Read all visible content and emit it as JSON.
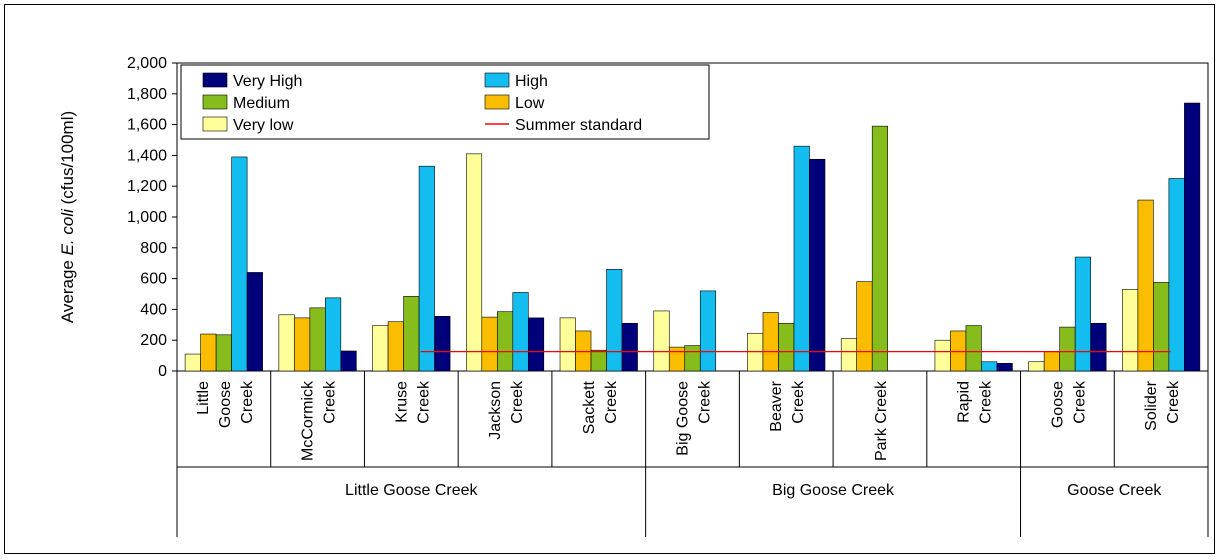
{
  "chart_data": {
    "type": "bar",
    "ylabel_parts": [
      "Average ",
      "E. coli",
      " (cfus/100ml)"
    ],
    "ylim": [
      0,
      2000
    ],
    "yticks": [
      "0",
      "200",
      "400",
      "600",
      "800",
      "1,000",
      "1,200",
      "1,400",
      "1,600",
      "1,800",
      "2,000"
    ],
    "grid": false,
    "legend_position": "top-left",
    "legend": [
      {
        "name": "Very High",
        "color": "#00007a",
        "kind": "bar"
      },
      {
        "name": "High",
        "color": "#14bdf0",
        "kind": "bar"
      },
      {
        "name": "Medium",
        "color": "#86bd1c",
        "kind": "bar"
      },
      {
        "name": "Low",
        "color": "#fbbd00",
        "kind": "bar"
      },
      {
        "name": "Very low",
        "color": "#ffff99",
        "kind": "bar"
      },
      {
        "name": "Summer standard",
        "color": "#ff0000",
        "kind": "line"
      }
    ],
    "categories": [
      {
        "lines": [
          "Little",
          "Goose",
          "Creek"
        ],
        "bars": [
          {
            "level": "Very low",
            "value": 110
          },
          {
            "level": "Low",
            "value": 240
          },
          {
            "level": "Medium",
            "value": 235
          },
          {
            "level": "High",
            "value": 1390
          },
          {
            "level": "Very High",
            "value": 640
          }
        ]
      },
      {
        "lines": [
          "McCormick",
          "Creek"
        ],
        "bars": [
          {
            "level": "Very low",
            "value": 365
          },
          {
            "level": "Low",
            "value": 345
          },
          {
            "level": "Medium",
            "value": 410
          },
          {
            "level": "High",
            "value": 475
          },
          {
            "level": "Very High",
            "value": 130
          }
        ]
      },
      {
        "lines": [
          "Kruse",
          "Creek"
        ],
        "bars": [
          {
            "level": "Very low",
            "value": 295
          },
          {
            "level": "Low",
            "value": 320
          },
          {
            "level": "Medium",
            "value": 485
          },
          {
            "level": "High",
            "value": 1330
          },
          {
            "level": "Very High",
            "value": 355
          }
        ]
      },
      {
        "lines": [
          "Jackson",
          "Creek"
        ],
        "bars": [
          {
            "level": "Very low",
            "value": 1410
          },
          {
            "level": "Low",
            "value": 350
          },
          {
            "level": "Medium",
            "value": 385
          },
          {
            "level": "High",
            "value": 510
          },
          {
            "level": "Very High",
            "value": 345
          }
        ]
      },
      {
        "lines": [
          "Sackett",
          "Creek"
        ],
        "bars": [
          {
            "level": "Very low",
            "value": 345
          },
          {
            "level": "Low",
            "value": 260
          },
          {
            "level": "Medium",
            "value": 135
          },
          {
            "level": "High",
            "value": 660
          },
          {
            "level": "Very High",
            "value": 310
          }
        ]
      },
      {
        "lines": [
          "Big Goose",
          "Creek"
        ],
        "bars": [
          {
            "level": "Very low",
            "value": 390
          },
          {
            "level": "Low",
            "value": 155
          },
          {
            "level": "Medium",
            "value": 165
          },
          {
            "level": "High",
            "value": 520
          }
        ]
      },
      {
        "lines": [
          "Beaver",
          "Creek"
        ],
        "bars": [
          {
            "level": "Very low",
            "value": 245
          },
          {
            "level": "Low",
            "value": 380
          },
          {
            "level": "Medium",
            "value": 310
          },
          {
            "level": "High",
            "value": 1460
          },
          {
            "level": "Very High",
            "value": 1375
          }
        ]
      },
      {
        "lines": [
          "Park Creek"
        ],
        "bars": [
          {
            "level": "Very low",
            "value": 210
          },
          {
            "level": "Low",
            "value": 580
          },
          {
            "level": "Medium",
            "value": 1590
          }
        ]
      },
      {
        "lines": [
          "Rapid",
          "Creek"
        ],
        "bars": [
          {
            "level": "Very low",
            "value": 200
          },
          {
            "level": "Low",
            "value": 260
          },
          {
            "level": "Medium",
            "value": 295
          },
          {
            "level": "High",
            "value": 60
          },
          {
            "level": "Very High",
            "value": 50
          }
        ]
      },
      {
        "lines": [
          "Goose",
          "Creek"
        ],
        "bars": [
          {
            "level": "Very low",
            "value": 60
          },
          {
            "level": "Low",
            "value": 125
          },
          {
            "level": "Medium",
            "value": 285
          },
          {
            "level": "High",
            "value": 740
          },
          {
            "level": "Very High",
            "value": 310
          }
        ]
      },
      {
        "lines": [
          "Solider",
          "Creek"
        ],
        "bars": [
          {
            "level": "Very low",
            "value": 530
          },
          {
            "level": "Low",
            "value": 1110
          },
          {
            "level": "Medium",
            "value": 575
          },
          {
            "level": "High",
            "value": 1250
          },
          {
            "level": "Very High",
            "value": 1740
          }
        ]
      }
    ],
    "groups": [
      {
        "label": "Little Goose Creek",
        "from": 0,
        "to": 4
      },
      {
        "label": "Big Goose Creek",
        "from": 5,
        "to": 8
      },
      {
        "label": "Goose Creek",
        "from": 9,
        "to": 10
      }
    ],
    "summer_standard": {
      "value": 126,
      "from_category": 2,
      "to_category": 10
    }
  }
}
